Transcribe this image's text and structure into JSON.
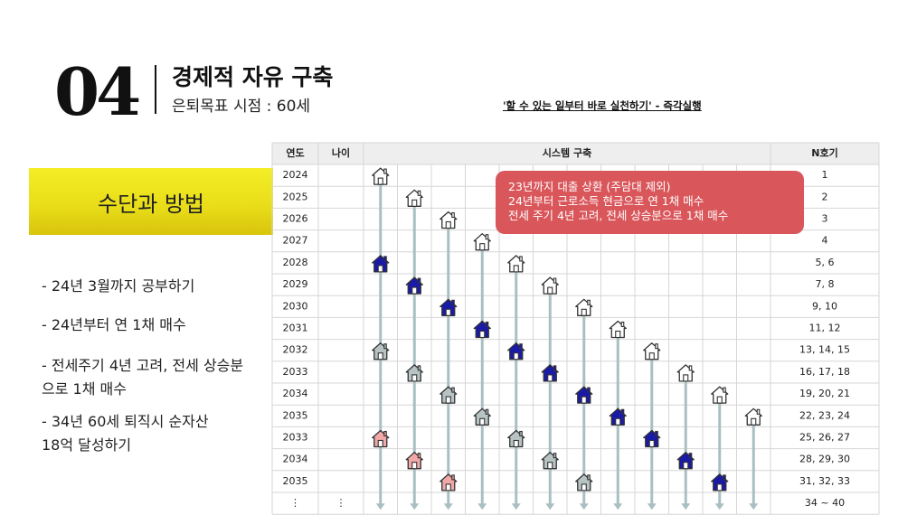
{
  "header": {
    "number": "04",
    "title": "경제적 자유 구축",
    "subtitle": "은퇴목표 시점 : 60세",
    "quote": "'할 수 있는 일부터 바로 실천하기' - 즉각실행"
  },
  "section_label": "수단과 방법",
  "bullets": [
    "- 24년 3월까지 공부하기",
    "- 24년부터 연 1채 매수",
    "- 전세주기 4년 고려, 전세 상승분",
    "으로 1채 매수",
    "- 34년 60세 퇴직시 순자산",
    "18억 달성하기"
  ],
  "table": {
    "headers": [
      "연도",
      "나이",
      "시스템 구축",
      "N호기"
    ],
    "rows": [
      {
        "year": "2024",
        "age": "",
        "n": "1"
      },
      {
        "year": "2025",
        "age": "",
        "n": "2"
      },
      {
        "year": "2026",
        "age": "",
        "n": "3"
      },
      {
        "year": "2027",
        "age": "",
        "n": "4"
      },
      {
        "year": "2028",
        "age": "",
        "n": "5, 6"
      },
      {
        "year": "2029",
        "age": "",
        "n": "7, 8"
      },
      {
        "year": "2030",
        "age": "",
        "n": "9, 10"
      },
      {
        "year": "2031",
        "age": "",
        "n": "11, 12"
      },
      {
        "year": "2032",
        "age": "",
        "n": "13, 14, 15"
      },
      {
        "year": "2033",
        "age": "",
        "n": "16, 17, 18"
      },
      {
        "year": "2034",
        "age": "",
        "n": "19, 20, 21"
      },
      {
        "year": "2035",
        "age": "",
        "n": "22, 23, 24"
      },
      {
        "year": "2033",
        "age": "",
        "n": "25, 26, 27"
      },
      {
        "year": "2034",
        "age": "",
        "n": "28, 29, 30"
      },
      {
        "year": "2035",
        "age": "",
        "n": "31, 32, 33"
      },
      {
        "year": "⋮",
        "age": "⋮",
        "n": "34 ~ 40"
      }
    ],
    "houses": [
      {
        "col": 0,
        "row": 0,
        "kind": "outline"
      },
      {
        "col": 0,
        "row": 4,
        "kind": "blue"
      },
      {
        "col": 0,
        "row": 8,
        "kind": "gray"
      },
      {
        "col": 0,
        "row": 12,
        "kind": "pink"
      },
      {
        "col": 1,
        "row": 1,
        "kind": "outline"
      },
      {
        "col": 1,
        "row": 5,
        "kind": "blue"
      },
      {
        "col": 1,
        "row": 9,
        "kind": "gray"
      },
      {
        "col": 1,
        "row": 13,
        "kind": "pink"
      },
      {
        "col": 2,
        "row": 2,
        "kind": "outline"
      },
      {
        "col": 2,
        "row": 6,
        "kind": "blue"
      },
      {
        "col": 2,
        "row": 10,
        "kind": "gray"
      },
      {
        "col": 2,
        "row": 14,
        "kind": "pink"
      },
      {
        "col": 3,
        "row": 3,
        "kind": "outline"
      },
      {
        "col": 3,
        "row": 7,
        "kind": "blue"
      },
      {
        "col": 3,
        "row": 11,
        "kind": "gray"
      },
      {
        "col": 4,
        "row": 4,
        "kind": "outline"
      },
      {
        "col": 4,
        "row": 8,
        "kind": "blue"
      },
      {
        "col": 4,
        "row": 12,
        "kind": "gray"
      },
      {
        "col": 5,
        "row": 5,
        "kind": "outline"
      },
      {
        "col": 5,
        "row": 9,
        "kind": "blue"
      },
      {
        "col": 5,
        "row": 13,
        "kind": "gray"
      },
      {
        "col": 6,
        "row": 6,
        "kind": "outline"
      },
      {
        "col": 6,
        "row": 10,
        "kind": "blue"
      },
      {
        "col": 6,
        "row": 14,
        "kind": "gray"
      },
      {
        "col": 7,
        "row": 7,
        "kind": "outline"
      },
      {
        "col": 7,
        "row": 11,
        "kind": "blue"
      },
      {
        "col": 8,
        "row": 8,
        "kind": "outline"
      },
      {
        "col": 8,
        "row": 12,
        "kind": "blue"
      },
      {
        "col": 9,
        "row": 9,
        "kind": "outline"
      },
      {
        "col": 9,
        "row": 13,
        "kind": "blue"
      },
      {
        "col": 10,
        "row": 10,
        "kind": "outline"
      },
      {
        "col": 10,
        "row": 14,
        "kind": "blue"
      },
      {
        "col": 11,
        "row": 11,
        "kind": "outline"
      }
    ]
  },
  "callout": [
    "23년까지 대출 상환 (주담대 제외)",
    "24년부터 근로소득 현금으로 연 1채 매수",
    "전세 주기 4년 고려, 전세 상승분으로 1채 매수"
  ],
  "colors": {
    "outline_house": "#ffffff",
    "blue_house": "#1a1aa8",
    "gray_house": "#b8c4c4",
    "pink_house": "#f2a8a8",
    "arrow": "#a9bfc2",
    "callout": "#d9575b",
    "highlight": "#e8dc18"
  }
}
